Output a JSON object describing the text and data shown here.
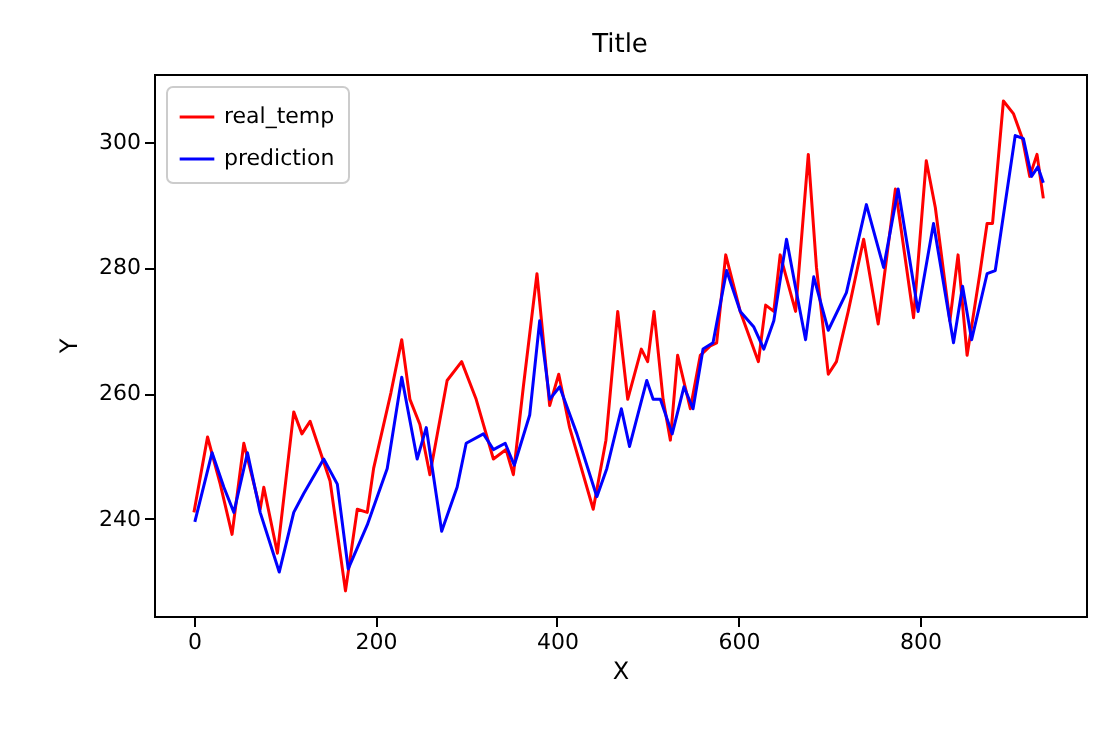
{
  "chart_data": {
    "type": "line",
    "title": "Title",
    "xlabel": "X",
    "ylabel": "Y",
    "xlim": [
      -44,
      983
    ],
    "ylim": [
      224.5,
      310.8
    ],
    "xticks": [
      0,
      200,
      400,
      600,
      800
    ],
    "yticks": [
      240,
      260,
      280,
      300
    ],
    "grid": false,
    "legend": "top left",
    "series": [
      {
        "name": "real_temp",
        "color": "#ff0000",
        "x": [
          0,
          15,
          29,
          42,
          55,
          73,
          77,
          92,
          110,
          119,
          128,
          150,
          167,
          180,
          191,
          198,
          217,
          229,
          238,
          249,
          260,
          279,
          295,
          311,
          330,
          344,
          352,
          363,
          378,
          392,
          402,
          414,
          440,
          454,
          467,
          478,
          493,
          500,
          507,
          517,
          525,
          533,
          547,
          558,
          569,
          576,
          586,
          602,
          622,
          630,
          639,
          646,
          663,
          677,
          686,
          699,
          708,
          721,
          738,
          754,
          773,
          793,
          807,
          817,
          833,
          842,
          852,
          866,
          874,
          880,
          892,
          903,
          913,
          921,
          929,
          936
        ],
        "values": [
          241,
          253,
          245.5,
          237.5,
          252,
          241.5,
          245,
          234.5,
          257,
          253.5,
          255.5,
          246,
          228.5,
          241.5,
          241,
          248,
          260,
          268.5,
          259,
          255,
          247,
          262,
          265,
          259,
          249.5,
          251,
          247,
          261,
          279,
          258,
          263,
          254.5,
          241.5,
          252.5,
          273,
          259,
          267,
          265,
          273,
          259,
          252.5,
          266,
          257.5,
          266,
          267.5,
          268,
          282,
          273,
          265,
          274,
          273,
          282,
          273,
          298,
          280,
          263,
          265,
          273,
          284.5,
          271,
          292.5,
          272,
          297,
          289.5,
          271.5,
          282,
          266,
          279,
          287,
          287,
          306.5,
          304.5,
          300.5,
          294.5,
          298,
          291
        ]
      },
      {
        "name": "prediction",
        "color": "#0000ff",
        "x": [
          1,
          20,
          33,
          44,
          59,
          73,
          94,
          110,
          121,
          143,
          158,
          170,
          191,
          213,
          229,
          246,
          256,
          273,
          290,
          300,
          319,
          330,
          343,
          353,
          370,
          381,
          392,
          403,
          422,
          444,
          455,
          471,
          480,
          499,
          506,
          514,
          527,
          540,
          550,
          561,
          572,
          587,
          602,
          617,
          628,
          639,
          653,
          664,
          674,
          683,
          699,
          719,
          741,
          760,
          776,
          798,
          815,
          837,
          847,
          857,
          874,
          883,
          905,
          914,
          923,
          930,
          936
        ],
        "values": [
          239.5,
          250.5,
          245,
          241,
          250.5,
          241,
          231.5,
          241,
          244,
          249.5,
          245.5,
          232,
          239,
          248,
          262.5,
          249.5,
          254.5,
          238,
          245,
          252,
          253.5,
          251,
          252,
          248.5,
          256.5,
          271.5,
          259,
          261,
          253.5,
          243.5,
          248,
          257.5,
          251.5,
          262,
          259,
          259,
          253.5,
          261,
          257.5,
          267,
          268,
          279.5,
          273,
          270.5,
          267,
          271.5,
          284.5,
          276,
          268.5,
          278.5,
          270,
          276,
          290,
          280,
          292.5,
          273,
          287,
          268,
          277,
          268.5,
          279,
          279.5,
          301,
          300.5,
          294.5,
          296,
          293.5
        ]
      }
    ]
  }
}
